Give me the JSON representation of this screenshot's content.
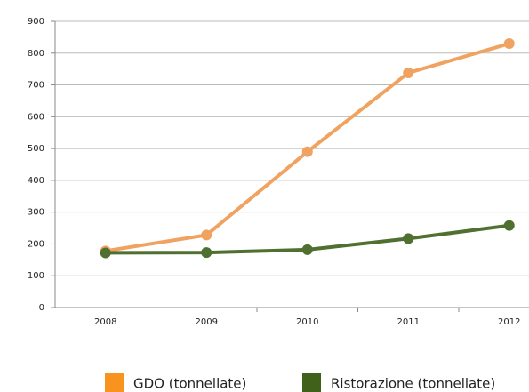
{
  "chart_data": {
    "type": "line",
    "categories": [
      "2008",
      "2009",
      "2010",
      "2011",
      "2012"
    ],
    "series": [
      {
        "name": "GDO (tonnellate)",
        "color": "#f0a360",
        "legend_color": "#f7931e",
        "values": [
          178,
          228,
          490,
          738,
          830
        ]
      },
      {
        "name": "Ristorazione (tonnellate)",
        "color": "#4f7030",
        "legend_color": "#3f6119",
        "values": [
          172,
          173,
          182,
          217,
          258
        ]
      }
    ],
    "ylim": [
      0,
      900
    ],
    "yticks": [
      0,
      100,
      200,
      300,
      400,
      500,
      600,
      700,
      800,
      900
    ],
    "grid": true
  }
}
